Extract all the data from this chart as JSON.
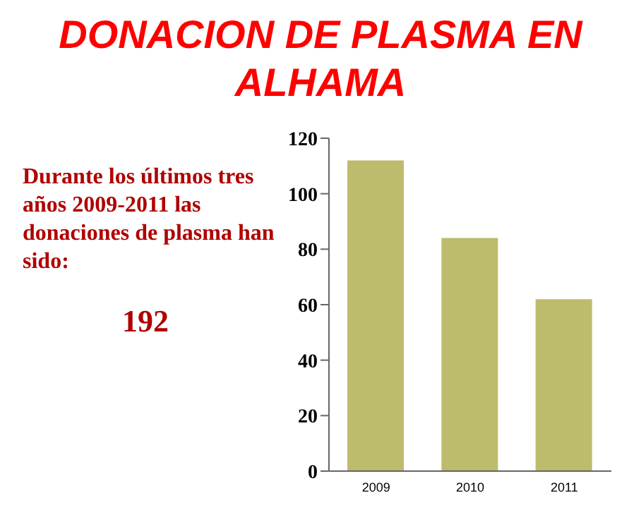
{
  "chart_data": {
    "type": "bar",
    "title": "DONACION DE PLASMA EN ALHAMA",
    "categories": [
      "2009",
      "2010",
      "2011"
    ],
    "values": [
      112,
      84,
      62
    ],
    "color": "#bcbc6c",
    "ylim": [
      0,
      120
    ],
    "yticks": [
      0,
      20,
      40,
      60,
      80,
      100,
      120
    ],
    "annotations": [
      "Durante los últimos tres años 2009-2011 las donaciones de plasma han sido:",
      "192"
    ]
  }
}
